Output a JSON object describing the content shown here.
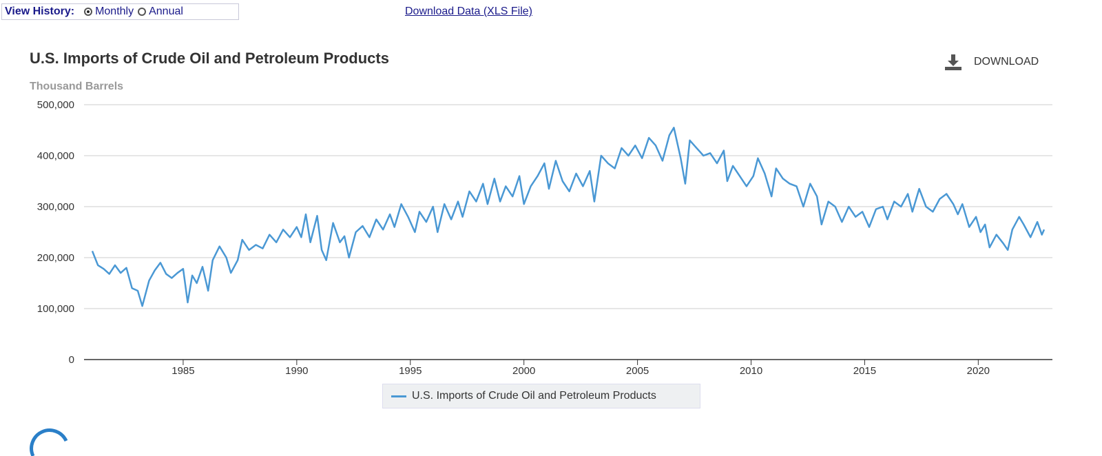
{
  "view_history": {
    "label": "View History:",
    "options": [
      "Monthly",
      "Annual"
    ],
    "selected": "Monthly"
  },
  "download_data_link": "Download Data (XLS File)",
  "download_button": "DOWNLOAD",
  "colors": {
    "series": "#4a98d4",
    "grid": "#cccccc"
  },
  "chart_data": {
    "type": "line",
    "title": "U.S. Imports of Crude Oil and Petroleum Products",
    "ylabel": "Thousand Barrels",
    "xlim": [
      1981,
      2022.9
    ],
    "ylim": [
      0,
      500000
    ],
    "yticks": [
      "0",
      "100,000",
      "200,000",
      "300,000",
      "400,000",
      "500,000"
    ],
    "xticks": [
      "1985",
      "1990",
      "1995",
      "2000",
      "2005",
      "2010",
      "2015",
      "2020"
    ],
    "grid": true,
    "legend": "bottom-center",
    "series": [
      {
        "name": "U.S. Imports of Crude Oil and Petroleum Products",
        "x": [
          1981.0,
          1981.25,
          1981.5,
          1981.75,
          1982.0,
          1982.25,
          1982.5,
          1982.75,
          1983.0,
          1983.2,
          1983.5,
          1983.75,
          1984.0,
          1984.25,
          1984.5,
          1984.75,
          1985.0,
          1985.2,
          1985.4,
          1985.6,
          1985.85,
          1986.1,
          1986.3,
          1986.6,
          1986.9,
          1987.1,
          1987.4,
          1987.6,
          1987.9,
          1988.2,
          1988.5,
          1988.8,
          1989.1,
          1989.4,
          1989.7,
          1990.0,
          1990.2,
          1990.4,
          1990.6,
          1990.9,
          1991.1,
          1991.3,
          1991.6,
          1991.9,
          1992.1,
          1992.3,
          1992.6,
          1992.9,
          1993.2,
          1993.5,
          1993.8,
          1994.1,
          1994.3,
          1994.6,
          1994.9,
          1995.2,
          1995.4,
          1995.7,
          1996.0,
          1996.2,
          1996.5,
          1996.8,
          1997.1,
          1997.3,
          1997.6,
          1997.9,
          1998.2,
          1998.4,
          1998.7,
          1998.95,
          1999.2,
          1999.5,
          1999.8,
          2000.0,
          2000.3,
          2000.6,
          2000.9,
          2001.1,
          2001.4,
          2001.7,
          2002.0,
          2002.3,
          2002.6,
          2002.9,
          2003.1,
          2003.4,
          2003.7,
          2004.0,
          2004.3,
          2004.6,
          2004.9,
          2005.2,
          2005.5,
          2005.8,
          2006.1,
          2006.4,
          2006.6,
          2006.9,
          2007.1,
          2007.3,
          2007.6,
          2007.9,
          2008.2,
          2008.5,
          2008.8,
          2008.95,
          2009.2,
          2009.5,
          2009.8,
          2010.1,
          2010.3,
          2010.6,
          2010.9,
          2011.1,
          2011.4,
          2011.7,
          2012.0,
          2012.3,
          2012.6,
          2012.9,
          2013.1,
          2013.4,
          2013.7,
          2014.0,
          2014.3,
          2014.6,
          2014.9,
          2015.2,
          2015.5,
          2015.8,
          2016.0,
          2016.3,
          2016.6,
          2016.9,
          2017.1,
          2017.4,
          2017.7,
          2018.0,
          2018.3,
          2018.6,
          2018.9,
          2019.1,
          2019.3,
          2019.6,
          2019.9,
          2020.1,
          2020.3,
          2020.5,
          2020.8,
          2021.1,
          2021.3,
          2021.5,
          2021.8,
          2022.0,
          2022.3,
          2022.6,
          2022.8,
          2022.9
        ],
        "y": [
          213000,
          185000,
          178000,
          168000,
          185000,
          170000,
          180000,
          140000,
          135000,
          105000,
          155000,
          175000,
          190000,
          168000,
          160000,
          170000,
          178000,
          112000,
          165000,
          150000,
          182000,
          135000,
          195000,
          222000,
          200000,
          170000,
          195000,
          235000,
          215000,
          225000,
          218000,
          245000,
          230000,
          255000,
          240000,
          260000,
          240000,
          285000,
          230000,
          282000,
          215000,
          195000,
          268000,
          230000,
          242000,
          200000,
          250000,
          262000,
          240000,
          275000,
          255000,
          285000,
          260000,
          305000,
          280000,
          250000,
          290000,
          270000,
          300000,
          250000,
          305000,
          275000,
          310000,
          280000,
          330000,
          310000,
          345000,
          305000,
          355000,
          310000,
          340000,
          320000,
          360000,
          305000,
          340000,
          360000,
          385000,
          335000,
          390000,
          350000,
          330000,
          365000,
          340000,
          370000,
          310000,
          400000,
          385000,
          375000,
          415000,
          400000,
          420000,
          395000,
          435000,
          420000,
          390000,
          440000,
          455000,
          395000,
          345000,
          430000,
          415000,
          400000,
          405000,
          385000,
          410000,
          350000,
          380000,
          360000,
          340000,
          360000,
          395000,
          365000,
          320000,
          375000,
          355000,
          345000,
          340000,
          300000,
          345000,
          320000,
          265000,
          310000,
          300000,
          270000,
          300000,
          280000,
          290000,
          260000,
          295000,
          300000,
          275000,
          310000,
          300000,
          325000,
          290000,
          335000,
          300000,
          290000,
          315000,
          325000,
          305000,
          285000,
          305000,
          260000,
          280000,
          250000,
          265000,
          220000,
          245000,
          228000,
          215000,
          255000,
          280000,
          265000,
          240000,
          270000,
          245000,
          255000
        ]
      }
    ]
  }
}
